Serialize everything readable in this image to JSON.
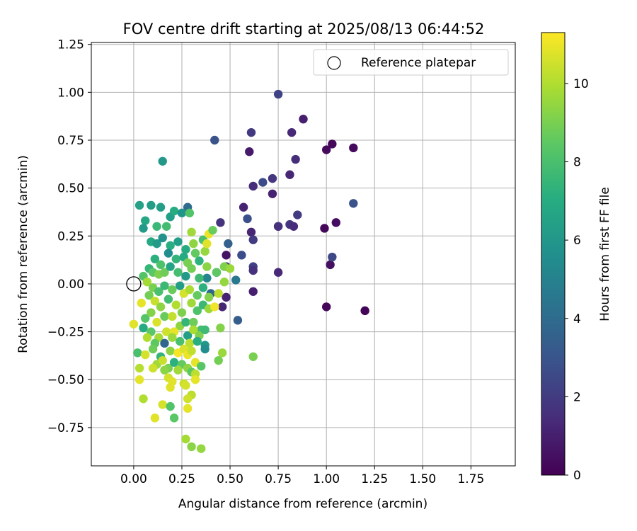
{
  "chart_data": {
    "type": "scatter",
    "title": "FOV centre drift starting at 2025/08/13 06:44:52",
    "xlabel": "Angular distance from reference (arcmin)",
    "ylabel": "Rotation from reference (arcmin)",
    "xlim": [
      -0.22,
      1.98
    ],
    "ylim": [
      -0.95,
      1.26
    ],
    "xticks": [
      0.0,
      0.25,
      0.5,
      0.75,
      1.0,
      1.25,
      1.5,
      1.75
    ],
    "xtick_labels": [
      "0.00",
      "0.25",
      "0.50",
      "0.75",
      "1.00",
      "1.25",
      "1.50",
      "1.75"
    ],
    "yticks": [
      -0.75,
      -0.5,
      -0.25,
      0.0,
      0.25,
      0.5,
      0.75,
      1.0,
      1.25
    ],
    "ytick_labels": [
      "−0.75",
      "−0.50",
      "−0.25",
      "0.00",
      "0.25",
      "0.50",
      "0.75",
      "1.00",
      "1.25"
    ],
    "grid": true,
    "colormap": "viridis",
    "colorbar": {
      "label": "Hours from first FF file",
      "range": [
        0,
        11.3
      ],
      "ticks": [
        0,
        2,
        4,
        6,
        8,
        10
      ],
      "tick_labels": [
        "0",
        "2",
        "4",
        "6",
        "8",
        "10"
      ]
    },
    "legend": {
      "position": "top-right",
      "entries": [
        {
          "label": "Reference platepar",
          "marker": "open-circle"
        }
      ]
    },
    "reference_point": {
      "x": 0.0,
      "y": 0.0
    },
    "points": [
      {
        "x": 1.2,
        "y": -0.14,
        "c": 0.1
      },
      {
        "x": 1.0,
        "y": -0.12,
        "c": 0.2
      },
      {
        "x": 0.99,
        "y": 0.29,
        "c": 0.2
      },
      {
        "x": 1.02,
        "y": 0.1,
        "c": 0.5
      },
      {
        "x": 1.05,
        "y": 0.32,
        "c": 0.4
      },
      {
        "x": 1.14,
        "y": 0.71,
        "c": 0.3
      },
      {
        "x": 1.03,
        "y": 0.73,
        "c": 0.2
      },
      {
        "x": 1.0,
        "y": 0.7,
        "c": 0.3
      },
      {
        "x": 0.88,
        "y": 0.86,
        "c": 1.0
      },
      {
        "x": 0.82,
        "y": 0.79,
        "c": 1.3
      },
      {
        "x": 0.75,
        "y": 0.99,
        "c": 2.3
      },
      {
        "x": 0.84,
        "y": 0.65,
        "c": 1.5
      },
      {
        "x": 0.81,
        "y": 0.57,
        "c": 1.2
      },
      {
        "x": 0.72,
        "y": 0.55,
        "c": 1.8
      },
      {
        "x": 0.72,
        "y": 0.47,
        "c": 1.1
      },
      {
        "x": 0.62,
        "y": 0.51,
        "c": 1.5
      },
      {
        "x": 0.67,
        "y": 0.53,
        "c": 2.6
      },
      {
        "x": 0.85,
        "y": 0.36,
        "c": 2.0
      },
      {
        "x": 0.81,
        "y": 0.31,
        "c": 1.8
      },
      {
        "x": 0.83,
        "y": 0.3,
        "c": 1.4
      },
      {
        "x": 0.75,
        "y": 0.3,
        "c": 0.9
      },
      {
        "x": 0.75,
        "y": 0.3,
        "c": 1.6
      },
      {
        "x": 0.61,
        "y": 0.79,
        "c": 1.9
      },
      {
        "x": 0.6,
        "y": 0.69,
        "c": 0.8
      },
      {
        "x": 0.42,
        "y": 0.75,
        "c": 2.9
      },
      {
        "x": 0.57,
        "y": 0.4,
        "c": 1.1
      },
      {
        "x": 0.59,
        "y": 0.34,
        "c": 2.8
      },
      {
        "x": 0.61,
        "y": 0.27,
        "c": 1.2
      },
      {
        "x": 0.62,
        "y": 0.23,
        "c": 2.0
      },
      {
        "x": 0.56,
        "y": 0.15,
        "c": 2.7
      },
      {
        "x": 0.62,
        "y": 0.09,
        "c": 2.2
      },
      {
        "x": 0.62,
        "y": 0.07,
        "c": 1.6
      },
      {
        "x": 0.62,
        "y": -0.04,
        "c": 1.0
      },
      {
        "x": 0.75,
        "y": 0.06,
        "c": 1.3
      },
      {
        "x": 1.14,
        "y": 0.42,
        "c": 2.9
      },
      {
        "x": 1.03,
        "y": 0.14,
        "c": 2.5
      },
      {
        "x": 0.45,
        "y": 0.32,
        "c": 1.7
      },
      {
        "x": 0.49,
        "y": 0.21,
        "c": 3.5
      },
      {
        "x": 0.48,
        "y": 0.15,
        "c": 0.6
      },
      {
        "x": 0.48,
        "y": 0.09,
        "c": 1.3
      },
      {
        "x": 0.53,
        "y": 0.02,
        "c": 4.6
      },
      {
        "x": 0.48,
        "y": -0.07,
        "c": 1.1
      },
      {
        "x": 0.46,
        "y": -0.12,
        "c": 1.2
      },
      {
        "x": 0.54,
        "y": -0.19,
        "c": 3.4
      },
      {
        "x": 0.28,
        "y": 0.4,
        "c": 4.0
      },
      {
        "x": 0.43,
        "y": 0.06,
        "c": 4.2
      },
      {
        "x": 0.4,
        "y": -0.05,
        "c": 3.8
      },
      {
        "x": 0.38,
        "y": 0.03,
        "c": 5.2
      },
      {
        "x": 0.15,
        "y": 0.64,
        "c": 6.0
      },
      {
        "x": 0.03,
        "y": 0.41,
        "c": 6.5
      },
      {
        "x": 0.09,
        "y": 0.41,
        "c": 6.3
      },
      {
        "x": 0.14,
        "y": 0.4,
        "c": 6.4
      },
      {
        "x": 0.06,
        "y": 0.33,
        "c": 6.7
      },
      {
        "x": 0.05,
        "y": 0.29,
        "c": 6.1
      },
      {
        "x": 0.12,
        "y": 0.3,
        "c": 7.6
      },
      {
        "x": 0.17,
        "y": 0.3,
        "c": 7.8
      },
      {
        "x": 0.19,
        "y": 0.35,
        "c": 6.4
      },
      {
        "x": 0.21,
        "y": 0.38,
        "c": 7.0
      },
      {
        "x": 0.25,
        "y": 0.37,
        "c": 5.9
      },
      {
        "x": 0.29,
        "y": 0.37,
        "c": 8.2
      },
      {
        "x": 0.09,
        "y": 0.22,
        "c": 6.8
      },
      {
        "x": 0.12,
        "y": 0.21,
        "c": 6.2
      },
      {
        "x": 0.15,
        "y": 0.24,
        "c": 5.8
      },
      {
        "x": 0.19,
        "y": 0.2,
        "c": 7.1
      },
      {
        "x": 0.23,
        "y": 0.22,
        "c": 6.4
      },
      {
        "x": 0.27,
        "y": 0.18,
        "c": 7.0
      },
      {
        "x": 0.3,
        "y": 0.27,
        "c": 9.7
      },
      {
        "x": 0.31,
        "y": 0.21,
        "c": 9.4
      },
      {
        "x": 0.36,
        "y": 0.23,
        "c": 8.0
      },
      {
        "x": 0.37,
        "y": 0.17,
        "c": 9.5
      },
      {
        "x": 0.38,
        "y": 0.21,
        "c": 10.8
      },
      {
        "x": 0.39,
        "y": 0.26,
        "c": 11.0
      },
      {
        "x": 0.41,
        "y": 0.28,
        "c": 8.7
      },
      {
        "x": 0.18,
        "y": 0.16,
        "c": 5.5
      },
      {
        "x": 0.22,
        "y": 0.13,
        "c": 7.4
      },
      {
        "x": 0.26,
        "y": 0.14,
        "c": 6.9
      },
      {
        "x": 0.28,
        "y": 0.11,
        "c": 9.0
      },
      {
        "x": 0.32,
        "y": 0.16,
        "c": 8.6
      },
      {
        "x": 0.34,
        "y": 0.12,
        "c": 7.3
      },
      {
        "x": 0.11,
        "y": 0.13,
        "c": 7.2
      },
      {
        "x": 0.14,
        "y": 0.1,
        "c": 8.1
      },
      {
        "x": 0.08,
        "y": 0.08,
        "c": 7.5
      },
      {
        "x": 0.1,
        "y": 0.06,
        "c": 8.4
      },
      {
        "x": 0.13,
        "y": 0.05,
        "c": 9.1
      },
      {
        "x": 0.16,
        "y": 0.06,
        "c": 8.8
      },
      {
        "x": 0.19,
        "y": 0.09,
        "c": 6.6
      },
      {
        "x": 0.23,
        "y": 0.06,
        "c": 7.9
      },
      {
        "x": 0.27,
        "y": 0.04,
        "c": 6.1
      },
      {
        "x": 0.3,
        "y": 0.08,
        "c": 8.9
      },
      {
        "x": 0.34,
        "y": 0.03,
        "c": 7.7
      },
      {
        "x": 0.38,
        "y": 0.09,
        "c": 9.3
      },
      {
        "x": 0.43,
        "y": 0.06,
        "c": 8.5
      },
      {
        "x": 0.47,
        "y": 0.09,
        "c": 9.1
      },
      {
        "x": 0.5,
        "y": 0.08,
        "c": 9.6
      },
      {
        "x": 0.05,
        "y": 0.04,
        "c": 8.2
      },
      {
        "x": 0.07,
        "y": 0.01,
        "c": 9.8
      },
      {
        "x": 0.1,
        "y": -0.02,
        "c": 9.0
      },
      {
        "x": 0.13,
        "y": -0.04,
        "c": 8.0
      },
      {
        "x": 0.16,
        "y": -0.01,
        "c": 7.6
      },
      {
        "x": 0.2,
        "y": -0.03,
        "c": 8.7
      },
      {
        "x": 0.24,
        "y": -0.01,
        "c": 6.3
      },
      {
        "x": 0.26,
        "y": -0.05,
        "c": 10.6
      },
      {
        "x": 0.29,
        "y": -0.03,
        "c": 9.9
      },
      {
        "x": 0.33,
        "y": -0.06,
        "c": 8.6
      },
      {
        "x": 0.36,
        "y": -0.02,
        "c": 7.2
      },
      {
        "x": 0.39,
        "y": -0.07,
        "c": 9.2
      },
      {
        "x": 0.44,
        "y": -0.05,
        "c": 10.2
      },
      {
        "x": 0.47,
        "y": 0.01,
        "c": 9.5
      },
      {
        "x": 0.08,
        "y": -0.06,
        "c": 8.9
      },
      {
        "x": 0.11,
        "y": -0.09,
        "c": 10.4
      },
      {
        "x": 0.04,
        "y": -0.1,
        "c": 10.9
      },
      {
        "x": 0.14,
        "y": -0.12,
        "c": 9.4
      },
      {
        "x": 0.18,
        "y": -0.08,
        "c": 7.8
      },
      {
        "x": 0.22,
        "y": -0.11,
        "c": 10.0
      },
      {
        "x": 0.25,
        "y": -0.15,
        "c": 9.1
      },
      {
        "x": 0.3,
        "y": -0.1,
        "c": 9.7
      },
      {
        "x": 0.33,
        "y": -0.14,
        "c": 8.1
      },
      {
        "x": 0.36,
        "y": -0.11,
        "c": 7.6
      },
      {
        "x": 0.39,
        "y": -0.13,
        "c": 9.6
      },
      {
        "x": 0.42,
        "y": -0.12,
        "c": 11.1
      },
      {
        "x": 0.06,
        "y": -0.18,
        "c": 8.3
      },
      {
        "x": 0.09,
        "y": -0.15,
        "c": 9.2
      },
      {
        "x": 0.12,
        "y": -0.2,
        "c": 10.7
      },
      {
        "x": 0.16,
        "y": -0.17,
        "c": 8.7
      },
      {
        "x": 0.2,
        "y": -0.17,
        "c": 10.3
      },
      {
        "x": 0.24,
        "y": -0.22,
        "c": 9.4
      },
      {
        "x": 0.27,
        "y": -0.2,
        "c": 7.5
      },
      {
        "x": 0.31,
        "y": -0.2,
        "c": 8.8
      },
      {
        "x": 0.35,
        "y": -0.24,
        "c": 7.9
      },
      {
        "x": 0.0,
        "y": -0.21,
        "c": 10.8
      },
      {
        "x": 0.05,
        "y": -0.23,
        "c": 6.9
      },
      {
        "x": 0.09,
        "y": -0.25,
        "c": 8.4
      },
      {
        "x": 0.13,
        "y": -0.28,
        "c": 9.8
      },
      {
        "x": 0.17,
        "y": -0.25,
        "c": 10.5
      },
      {
        "x": 0.21,
        "y": -0.25,
        "c": 10.9
      },
      {
        "x": 0.28,
        "y": -0.27,
        "c": 6.4
      },
      {
        "x": 0.31,
        "y": -0.24,
        "c": 9.9
      },
      {
        "x": 0.34,
        "y": -0.27,
        "c": 9.1
      },
      {
        "x": 0.37,
        "y": -0.24,
        "c": 7.7
      },
      {
        "x": 0.45,
        "y": -0.23,
        "c": 9.2
      },
      {
        "x": 0.07,
        "y": -0.28,
        "c": 10.0
      },
      {
        "x": 0.11,
        "y": -0.31,
        "c": 8.5
      },
      {
        "x": 0.16,
        "y": -0.31,
        "c": 3.8
      },
      {
        "x": 0.2,
        "y": -0.28,
        "c": 9.6
      },
      {
        "x": 0.24,
        "y": -0.3,
        "c": 8.0
      },
      {
        "x": 0.29,
        "y": -0.31,
        "c": 10.2
      },
      {
        "x": 0.33,
        "y": -0.3,
        "c": 7.1
      },
      {
        "x": 0.37,
        "y": -0.32,
        "c": 6.0
      },
      {
        "x": 0.37,
        "y": -0.34,
        "c": 5.5
      },
      {
        "x": 0.02,
        "y": -0.36,
        "c": 8.0
      },
      {
        "x": 0.06,
        "y": -0.37,
        "c": 10.6
      },
      {
        "x": 0.1,
        "y": -0.34,
        "c": 8.8
      },
      {
        "x": 0.14,
        "y": -0.38,
        "c": 7.4
      },
      {
        "x": 0.19,
        "y": -0.35,
        "c": 9.3
      },
      {
        "x": 0.23,
        "y": -0.36,
        "c": 11.2
      },
      {
        "x": 0.26,
        "y": -0.34,
        "c": 10.7
      },
      {
        "x": 0.28,
        "y": -0.37,
        "c": 11.0
      },
      {
        "x": 0.3,
        "y": -0.35,
        "c": 10.3
      },
      {
        "x": 0.46,
        "y": -0.36,
        "c": 9.6
      },
      {
        "x": 0.62,
        "y": -0.38,
        "c": 9.0
      },
      {
        "x": 0.12,
        "y": -0.42,
        "c": 9.7
      },
      {
        "x": 0.15,
        "y": -0.4,
        "c": 10.4
      },
      {
        "x": 0.18,
        "y": -0.44,
        "c": 9.0
      },
      {
        "x": 0.21,
        "y": -0.41,
        "c": 7.2
      },
      {
        "x": 0.25,
        "y": -0.42,
        "c": 8.6
      },
      {
        "x": 0.28,
        "y": -0.44,
        "c": 9.4
      },
      {
        "x": 0.32,
        "y": -0.41,
        "c": 10.9
      },
      {
        "x": 0.35,
        "y": -0.43,
        "c": 8.3
      },
      {
        "x": 0.44,
        "y": -0.4,
        "c": 8.9
      },
      {
        "x": 0.03,
        "y": -0.44,
        "c": 10.1
      },
      {
        "x": 0.1,
        "y": -0.44,
        "c": 10.5
      },
      {
        "x": 0.16,
        "y": -0.45,
        "c": 9.3
      },
      {
        "x": 0.23,
        "y": -0.45,
        "c": 9.7
      },
      {
        "x": 0.3,
        "y": -0.46,
        "c": 8.5
      },
      {
        "x": 0.32,
        "y": -0.47,
        "c": 10.2
      },
      {
        "x": 0.03,
        "y": -0.5,
        "c": 10.9
      },
      {
        "x": 0.18,
        "y": -0.49,
        "c": 10.6
      },
      {
        "x": 0.2,
        "y": -0.51,
        "c": 10.8
      },
      {
        "x": 0.26,
        "y": -0.52,
        "c": 10.4
      },
      {
        "x": 0.27,
        "y": -0.53,
        "c": 10.6
      },
      {
        "x": 0.32,
        "y": -0.5,
        "c": 10.9
      },
      {
        "x": 0.19,
        "y": -0.54,
        "c": 10.8
      },
      {
        "x": 0.3,
        "y": -0.58,
        "c": 10.2
      },
      {
        "x": 0.05,
        "y": -0.6,
        "c": 10.0
      },
      {
        "x": 0.28,
        "y": -0.6,
        "c": 10.5
      },
      {
        "x": 0.15,
        "y": -0.63,
        "c": 10.6
      },
      {
        "x": 0.19,
        "y": -0.64,
        "c": 8.2
      },
      {
        "x": 0.28,
        "y": -0.65,
        "c": 10.9
      },
      {
        "x": 0.11,
        "y": -0.7,
        "c": 10.8
      },
      {
        "x": 0.21,
        "y": -0.7,
        "c": 8.4
      },
      {
        "x": 0.27,
        "y": -0.81,
        "c": 9.8
      },
      {
        "x": 0.3,
        "y": -0.85,
        "c": 9.3
      },
      {
        "x": 0.35,
        "y": -0.86,
        "c": 9.5
      }
    ]
  }
}
